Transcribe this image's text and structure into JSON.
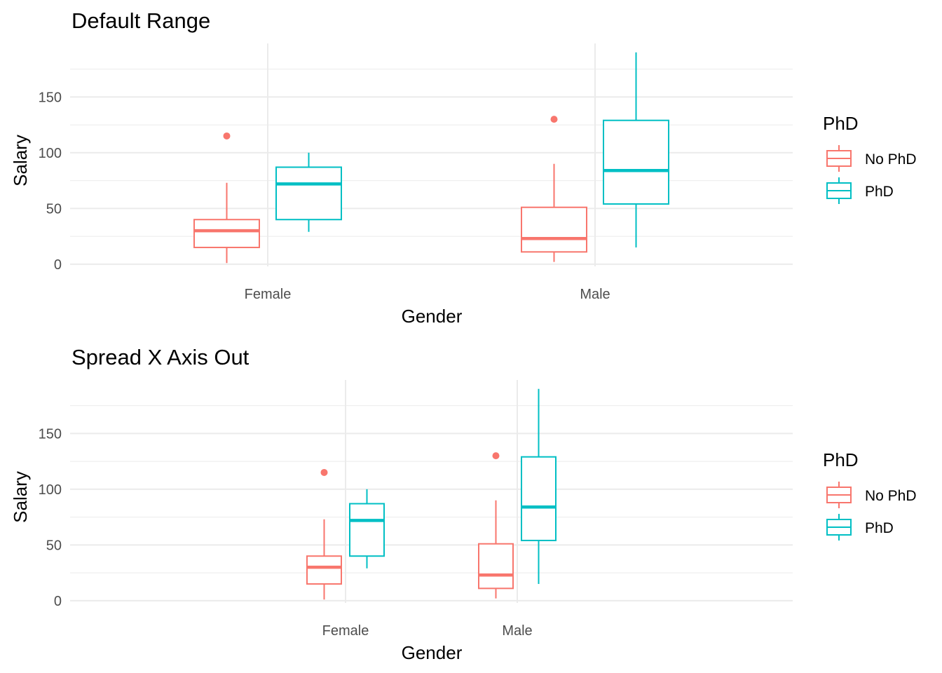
{
  "colors": {
    "no_phd": "#F8766D",
    "phd": "#00BFC4",
    "grid": "#EBEBEB"
  },
  "chart_data": [
    {
      "type": "boxplot",
      "title": "Default Range",
      "xlabel": "Gender",
      "ylabel": "Salary",
      "categories": [
        "Female",
        "Male"
      ],
      "yticks": [
        0,
        50,
        100,
        150
      ],
      "ylim": [
        -2,
        198
      ],
      "x_expanded": false,
      "grid": true,
      "legend": {
        "title": "PhD",
        "position": "right",
        "entries": [
          "No PhD",
          "PhD"
        ]
      },
      "series": [
        {
          "name": "No PhD",
          "boxes": [
            {
              "category": "Female",
              "min": 1,
              "q1": 15,
              "median": 30,
              "q3": 40,
              "max": 73,
              "outliers": [
                115
              ]
            },
            {
              "category": "Male",
              "min": 2,
              "q1": 11,
              "median": 23,
              "q3": 51,
              "max": 90,
              "outliers": [
                130
              ]
            }
          ]
        },
        {
          "name": "PhD",
          "boxes": [
            {
              "category": "Female",
              "min": 29,
              "q1": 40,
              "median": 72,
              "q3": 87,
              "max": 100,
              "outliers": []
            },
            {
              "category": "Male",
              "min": 15,
              "q1": 54,
              "median": 84,
              "q3": 129,
              "max": 190,
              "outliers": []
            }
          ]
        }
      ]
    },
    {
      "type": "boxplot",
      "title": "Spread X Axis Out",
      "xlabel": "Gender",
      "ylabel": "Salary",
      "categories": [
        "Female",
        "Male"
      ],
      "yticks": [
        0,
        50,
        100,
        150
      ],
      "ylim": [
        -2,
        198
      ],
      "x_expanded": true,
      "grid": true,
      "legend": {
        "title": "PhD",
        "position": "right",
        "entries": [
          "No PhD",
          "PhD"
        ]
      },
      "series": [
        {
          "name": "No PhD",
          "boxes": [
            {
              "category": "Female",
              "min": 1,
              "q1": 15,
              "median": 30,
              "q3": 40,
              "max": 73,
              "outliers": [
                115
              ]
            },
            {
              "category": "Male",
              "min": 2,
              "q1": 11,
              "median": 23,
              "q3": 51,
              "max": 90,
              "outliers": [
                130
              ]
            }
          ]
        },
        {
          "name": "PhD",
          "boxes": [
            {
              "category": "Female",
              "min": 29,
              "q1": 40,
              "median": 72,
              "q3": 87,
              "max": 100,
              "outliers": []
            },
            {
              "category": "Male",
              "min": 15,
              "q1": 54,
              "median": 84,
              "q3": 129,
              "max": 190,
              "outliers": []
            }
          ]
        }
      ]
    }
  ]
}
